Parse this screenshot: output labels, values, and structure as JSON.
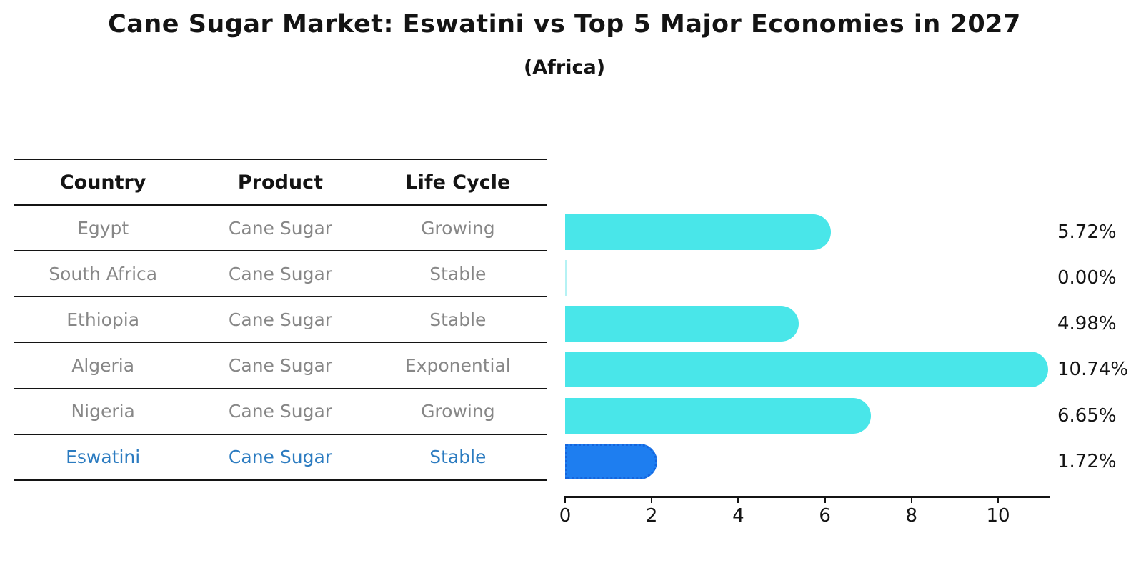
{
  "title": "Cane Sugar Market: Eswatini vs Top 5 Major Economies in 2027",
  "subtitle": "(Africa)",
  "table": {
    "headers": [
      "Country",
      "Product",
      "Life Cycle"
    ],
    "rows": [
      {
        "country": "Egypt",
        "product": "Cane Sugar",
        "life_cycle": "Growing",
        "value_label": "5.72%",
        "highlight": false
      },
      {
        "country": "South Africa",
        "product": "Cane Sugar",
        "life_cycle": "Stable",
        "value_label": "0.00%",
        "highlight": false
      },
      {
        "country": "Ethiopia",
        "product": "Cane Sugar",
        "life_cycle": "Stable",
        "value_label": "4.98%",
        "highlight": false
      },
      {
        "country": "Algeria",
        "product": "Cane Sugar",
        "life_cycle": "Exponential",
        "value_label": "10.74%",
        "highlight": false
      },
      {
        "country": "Nigeria",
        "product": "Cane Sugar",
        "life_cycle": "Growing",
        "value_label": "6.65%",
        "highlight": false
      },
      {
        "country": "Eswatini",
        "product": "Cane Sugar",
        "life_cycle": "Stable",
        "value_label": "1.72%",
        "highlight": true
      }
    ]
  },
  "chart_data": {
    "type": "bar",
    "orientation": "horizontal",
    "title": "Cane Sugar Market: Eswatini vs Top 5 Major Economies in 2027",
    "subtitle": "(Africa)",
    "categories": [
      "Egypt",
      "South Africa",
      "Ethiopia",
      "Algeria",
      "Nigeria",
      "Eswatini"
    ],
    "values": [
      5.72,
      0.0,
      4.98,
      10.74,
      6.65,
      1.72
    ],
    "value_labels": [
      "5.72%",
      "0.00%",
      "4.98%",
      "10.74%",
      "6.65%",
      "1.72%"
    ],
    "x_ticks": [
      0,
      2,
      4,
      6,
      8,
      10
    ],
    "xlim": [
      0,
      11.2
    ],
    "grid": false,
    "legend": false,
    "highlight_index": 5,
    "bar_color": "#49E6E9",
    "highlight_bar_color": "#1E7EF0"
  },
  "colors": {
    "ink": "#141414",
    "cell_text": "#878787",
    "bar": "#49E6E9",
    "bar_zero": "#B5F2F4",
    "highlight_bar": "#1E7EF0",
    "highlight_bar_border": "#1565DD",
    "highlight_text": "#2B7BC0"
  }
}
